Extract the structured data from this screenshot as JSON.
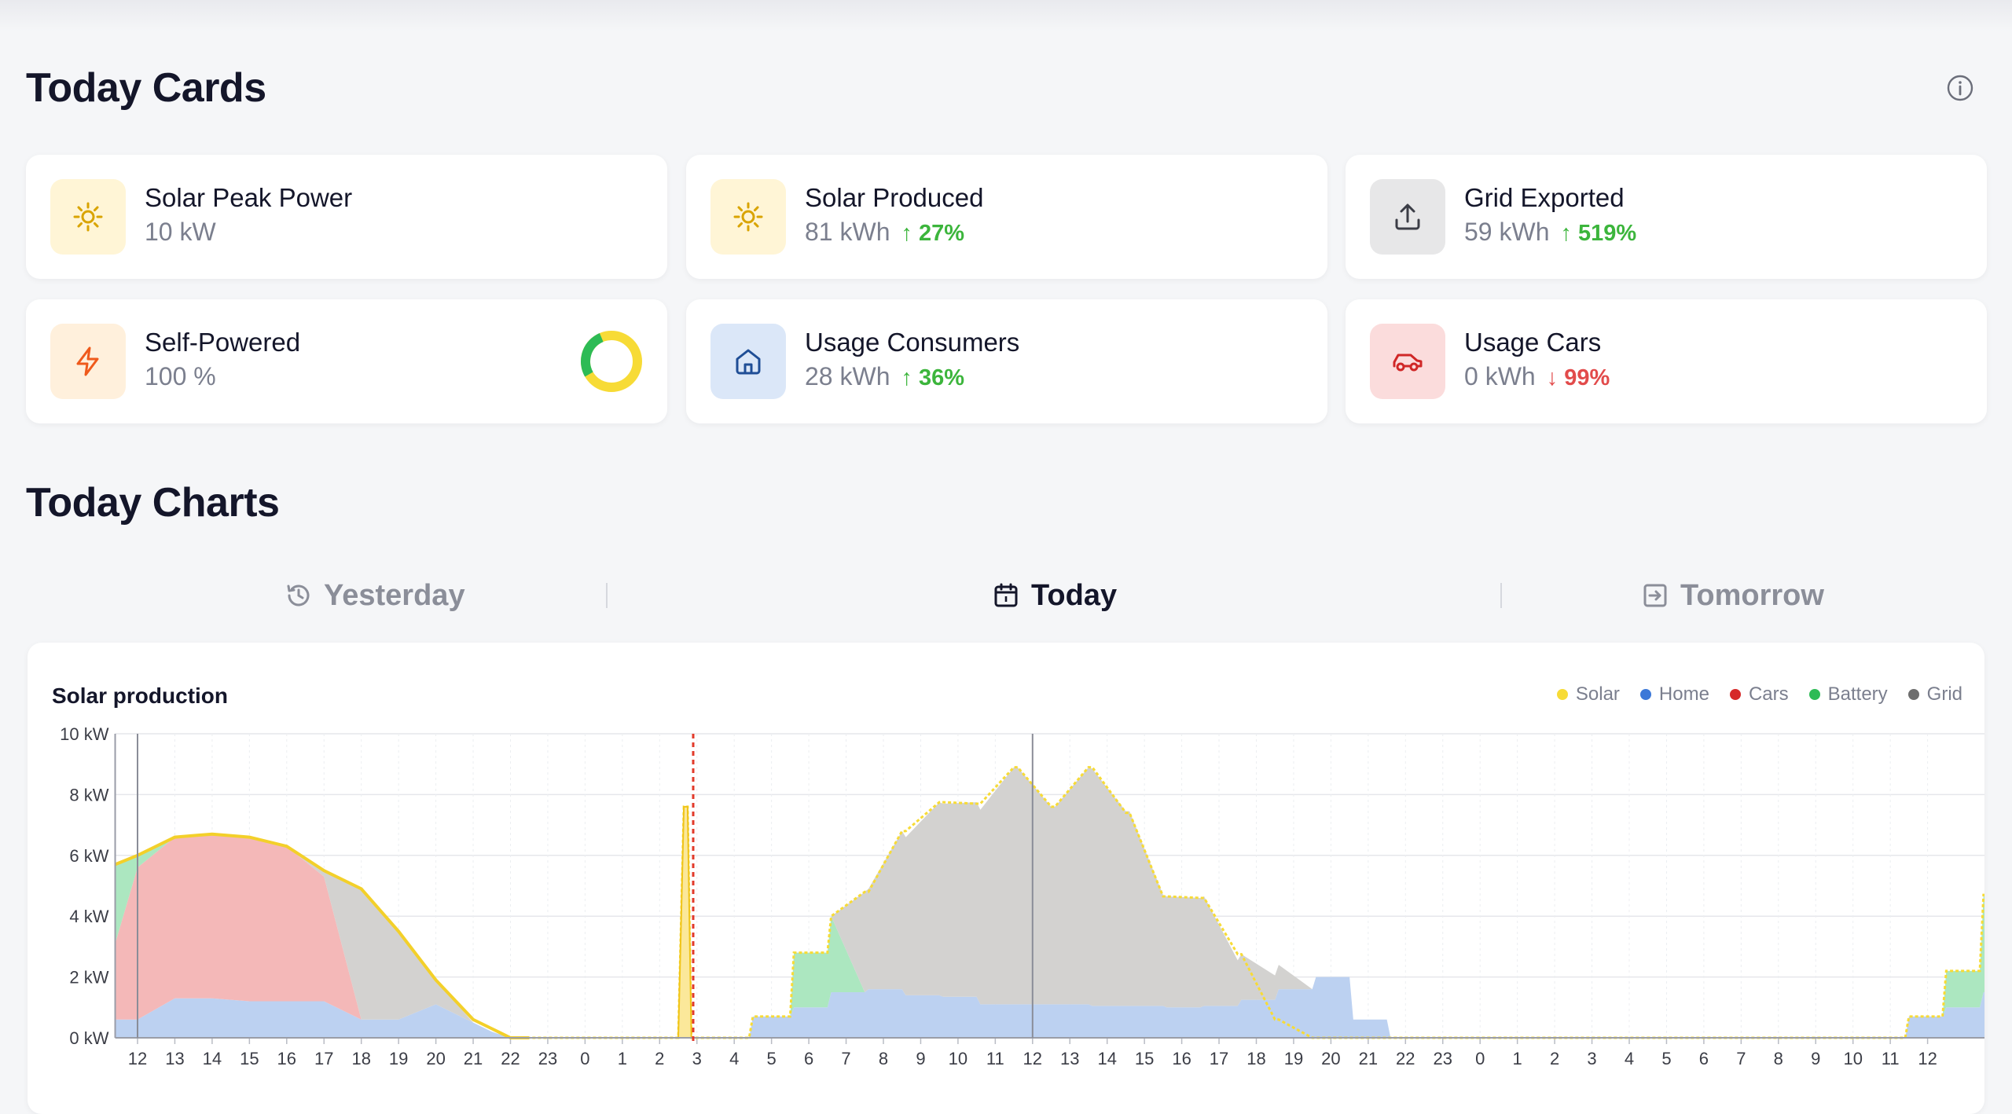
{
  "sections": {
    "cards_title": "Today Cards",
    "charts_title": "Today Charts"
  },
  "cards": [
    {
      "title": "Solar Peak Power",
      "value": "10 kW",
      "delta": "",
      "trend": "",
      "icon": "sun-icon",
      "tint": "#fff5d6",
      "color": "#d9a400"
    },
    {
      "title": "Solar Produced",
      "value": "81 kWh",
      "delta": "27%",
      "trend": "up",
      "icon": "sun-icon",
      "tint": "#fff5d6",
      "color": "#d9a400"
    },
    {
      "title": "Grid Exported",
      "value": "59 kWh",
      "delta": "519%",
      "trend": "up",
      "icon": "upload-icon",
      "tint": "#e7e7e8",
      "color": "#3b3d46"
    },
    {
      "title": "Self-Powered",
      "value": "100 %",
      "delta": "",
      "trend": "",
      "icon": "bolt-icon",
      "tint": "#fff0dc",
      "color": "#ef5a1c"
    },
    {
      "title": "Usage Consumers",
      "value": "28 kWh",
      "delta": "36%",
      "trend": "up",
      "icon": "home-icon",
      "tint": "#dbe7f8",
      "color": "#1f4e96"
    },
    {
      "title": "Usage Cars",
      "value": "0 kWh",
      "delta": "99%",
      "trend": "down",
      "icon": "car-icon",
      "tint": "#fbdcdc",
      "color": "#d02727"
    }
  ],
  "self_powered_ratio": {
    "grid_fraction": 0.27,
    "solar_fraction": 0.73,
    "solar_color": "#f7db36",
    "grid_color": "#2dbb55"
  },
  "tabs": {
    "yesterday": "Yesterday",
    "today": "Today",
    "tomorrow": "Tomorrow",
    "active": "today"
  },
  "chart": {
    "title": "Solar production",
    "legend": [
      {
        "name": "Solar",
        "color": "#f7db36"
      },
      {
        "name": "Home",
        "color": "#3c78d8"
      },
      {
        "name": "Cars",
        "color": "#d62828"
      },
      {
        "name": "Battery",
        "color": "#2dbb55"
      },
      {
        "name": "Grid",
        "color": "#6e6e6e"
      }
    ]
  },
  "chart_data": {
    "type": "area",
    "title": "Solar production",
    "y_unit": "kW",
    "ylim": [
      0,
      10
    ],
    "y_ticks": [
      "0 kW",
      "2 kW",
      "4 kW",
      "6 kW",
      "8 kW",
      "10 kW"
    ],
    "x_ticks": [
      "12",
      "13",
      "14",
      "15",
      "16",
      "17",
      "18",
      "19",
      "20",
      "21",
      "22",
      "23",
      "0",
      "1",
      "2",
      "3",
      "4",
      "5",
      "6",
      "7",
      "8",
      "9",
      "10",
      "11",
      "12",
      "13",
      "14",
      "15",
      "16",
      "17",
      "18",
      "19",
      "20",
      "21",
      "22",
      "23",
      "0",
      "1",
      "2",
      "3",
      "4",
      "5",
      "6",
      "7",
      "8",
      "9",
      "10",
      "11",
      "12"
    ],
    "day_boundaries_hours": [
      12,
      36
    ],
    "now_hour": 14.9,
    "grid": true,
    "legend_position": "top-right",
    "series_t": [
      11.4,
      12,
      13,
      14,
      15,
      16,
      17,
      18,
      19,
      20,
      21,
      21.5,
      22,
      22.5,
      26.5,
      26.65,
      26.75,
      26.85,
      27,
      28.4,
      28.5,
      29.5,
      29.6,
      30.5,
      30.6,
      31.5,
      31.6,
      32.5,
      32.6,
      33.5,
      33.6,
      34.5,
      34.6,
      35.5,
      35.6,
      36.5,
      36.6,
      37.5,
      37.6,
      38.5,
      38.6,
      39.5,
      39.6,
      40.5,
      40.6,
      41.5,
      41.6,
      42.5,
      42.6,
      43.5,
      43.6,
      44.5,
      44.6,
      45.5,
      45.6,
      46.5,
      46.6,
      47.5,
      47.6,
      48.4,
      59.4,
      59.5,
      60.4,
      60.5,
      61.4,
      61.5,
      62.4,
      62.5,
      63.3,
      63.4,
      64.3,
      64.4,
      65.3,
      65.4,
      66.3,
      66.4,
      67.3,
      67.4,
      67.8
    ],
    "series": [
      {
        "name": "Home",
        "values": [
          0.6,
          0.6,
          1.3,
          1.3,
          1.2,
          1.2,
          1.2,
          0.6,
          0.6,
          1.1,
          0.5,
          0.2,
          0,
          0,
          0,
          0,
          0,
          0,
          0,
          0,
          0.7,
          0.7,
          1.0,
          1.0,
          1.5,
          1.5,
          1.6,
          1.6,
          1.4,
          1.4,
          1.35,
          1.35,
          1.1,
          1.1,
          1.1,
          1.1,
          1.1,
          1.1,
          1.05,
          1.05,
          1.05,
          1.05,
          1.0,
          1.0,
          1.05,
          1.05,
          1.25,
          1.25,
          1.6,
          1.6,
          2.0,
          2.0,
          0.6,
          0.6,
          0,
          0,
          0,
          0,
          0,
          0,
          0,
          0.7,
          0.7,
          1.0,
          1.0,
          1.5,
          1.5,
          1.6,
          1.6,
          1.6,
          1.6,
          1.6,
          1.2,
          1.2,
          1.1,
          1.1,
          1.15,
          1.15,
          1.15
        ]
      },
      {
        "name": "Cars",
        "values": [
          2.5,
          5.0,
          5.3,
          5.4,
          5.4,
          5.1,
          4.1,
          0,
          0,
          0,
          0,
          0,
          0,
          0,
          0,
          0,
          0,
          0,
          0,
          0,
          0,
          0,
          0,
          0,
          0,
          0,
          0,
          0,
          0,
          0,
          0,
          0,
          0,
          0,
          0,
          0,
          0,
          0,
          0,
          0,
          0,
          0,
          0,
          0,
          0,
          0,
          0,
          0,
          0,
          0,
          0,
          0,
          0,
          0,
          0,
          0,
          0,
          0,
          0,
          0,
          0,
          0,
          0,
          0,
          0,
          0,
          0,
          0,
          0,
          0,
          0,
          0,
          0,
          0,
          0,
          0,
          0,
          0,
          0
        ]
      },
      {
        "name": "Battery",
        "values": [
          2.6,
          0.4,
          0,
          0,
          0,
          0,
          0,
          0,
          0,
          0,
          0,
          0,
          0,
          0,
          0,
          0,
          0,
          0,
          0,
          0,
          0,
          0,
          1.8,
          1.8,
          2.5,
          0,
          0,
          0,
          0,
          0,
          0,
          0,
          0,
          0,
          0,
          0,
          0,
          0,
          0,
          0,
          0,
          0,
          0,
          0,
          0,
          0,
          0,
          0,
          0,
          0,
          0,
          0,
          0,
          0,
          0,
          0,
          0,
          0,
          0,
          0,
          0,
          0,
          0,
          1.2,
          1.2,
          3.2,
          3.2,
          4.6,
          4.6,
          0,
          0,
          0,
          0,
          0,
          0,
          0,
          0,
          0,
          0
        ]
      },
      {
        "name": "Grid",
        "values": [
          0,
          0,
          0,
          0,
          0,
          0,
          0.2,
          4.3,
          2.9,
          0.8,
          0,
          0,
          0,
          0,
          0,
          0,
          0,
          0,
          0,
          0,
          0,
          0,
          0,
          0,
          0,
          3.3,
          3.3,
          5.2,
          5.2,
          6.35,
          6.35,
          6.4,
          6.4,
          7.8,
          7.8,
          6.5,
          6.5,
          7.8,
          7.8,
          6.4,
          6.4,
          3.65,
          3.65,
          3.6,
          3.6,
          1.5,
          1.5,
          0.8,
          0.8,
          0,
          0,
          0,
          0,
          0,
          0,
          0,
          0,
          0,
          0,
          0,
          0,
          0,
          0,
          0,
          0,
          0,
          0,
          0,
          0,
          4.2,
          4.2,
          5.4,
          5.8,
          5.8,
          5.9,
          5.9,
          7.4,
          7.4,
          7.4
        ]
      },
      {
        "name": "Solar",
        "values": [
          5.7,
          6.0,
          6.6,
          6.7,
          6.6,
          6.3,
          5.5,
          4.9,
          3.5,
          1.9,
          0.6,
          0.3,
          0,
          0,
          0,
          7.6,
          7.6,
          0,
          0,
          0,
          0.7,
          0.7,
          2.8,
          2.8,
          4.0,
          4.8,
          4.8,
          6.8,
          6.8,
          7.75,
          7.75,
          7.7,
          7.7,
          8.9,
          8.9,
          7.6,
          7.6,
          8.9,
          8.9,
          7.4,
          7.4,
          4.65,
          4.65,
          4.6,
          4.6,
          2.75,
          2.75,
          0.6,
          0.6,
          0,
          0,
          0,
          0,
          0,
          0,
          0,
          0,
          0,
          0,
          0,
          0,
          0.7,
          0.7,
          2.2,
          2.2,
          4.7,
          4.7,
          6.2,
          6.2,
          5.8,
          5.8,
          7.0,
          7.0,
          7.0,
          7.0,
          7.0,
          8.6,
          8.6,
          8.6
        ]
      }
    ]
  }
}
